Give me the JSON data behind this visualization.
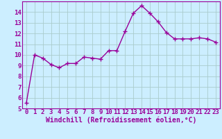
{
  "title": "",
  "xlabel": "Windchill (Refroidissement éolien,°C)",
  "x": [
    0,
    1,
    2,
    3,
    4,
    5,
    6,
    7,
    8,
    9,
    10,
    11,
    12,
    13,
    14,
    15,
    16,
    17,
    18,
    19,
    20,
    21,
    22,
    23
  ],
  "y": [
    5.5,
    10.0,
    9.7,
    9.1,
    8.8,
    9.2,
    9.2,
    9.8,
    9.7,
    9.6,
    10.4,
    10.4,
    12.2,
    13.9,
    14.6,
    13.9,
    13.1,
    12.1,
    11.5,
    11.5,
    11.5,
    11.6,
    11.5,
    11.2
  ],
  "line_color": "#990099",
  "marker": "+",
  "marker_size": 4,
  "line_width": 1.0,
  "bg_color": "#cceeff",
  "grid_color": "#aacccc",
  "tick_color": "#990099",
  "label_color": "#990099",
  "ylim": [
    5,
    15
  ],
  "yticks": [
    5,
    6,
    7,
    8,
    9,
    10,
    11,
    12,
    13,
    14
  ],
  "xticks": [
    0,
    1,
    2,
    3,
    4,
    5,
    6,
    7,
    8,
    9,
    10,
    11,
    12,
    13,
    14,
    15,
    16,
    17,
    18,
    19,
    20,
    21,
    22,
    23
  ],
  "font_size": 6.5
}
